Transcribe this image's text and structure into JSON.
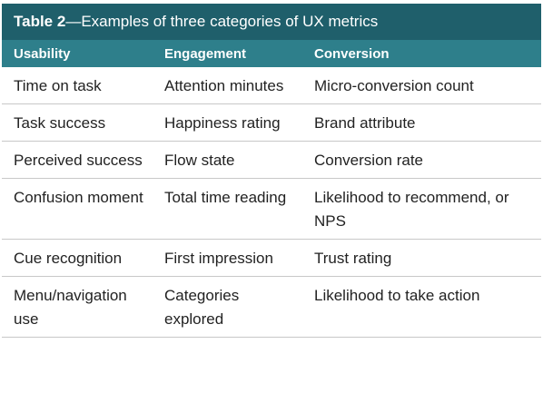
{
  "caption": {
    "label": "Table 2",
    "text": "—Examples of three categories of UX metrics"
  },
  "headers": [
    "Usability",
    "Engagement",
    "Conversion"
  ],
  "rows": [
    [
      "Time on task",
      "Attention minutes",
      "Micro-conversion count"
    ],
    [
      "Task success",
      "Happiness rating",
      "Brand attribute"
    ],
    [
      "Perceived success",
      "Flow state",
      "Conversion rate"
    ],
    [
      "Confusion moment",
      "Total time reading",
      "Likelihood to recommend, or NPS"
    ],
    [
      "Cue recognition",
      "First impression",
      "Trust rating"
    ],
    [
      "Menu/navigation use",
      "Categories explored",
      "Likelihood to take action"
    ]
  ],
  "colors": {
    "caption_bg": "#1f5f6b",
    "header_bg": "#2e7f8b",
    "divider": "#c8c8c8"
  }
}
